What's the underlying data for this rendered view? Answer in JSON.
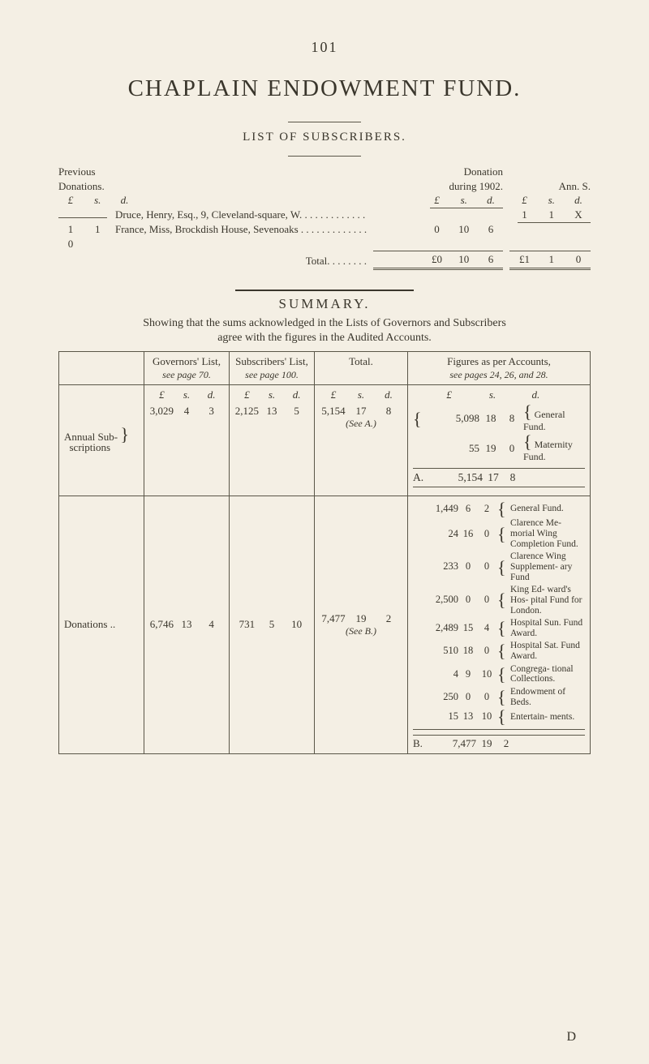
{
  "page_number": "101",
  "title": "CHAPLAIN ENDOWMENT FUND.",
  "list_header": "LIST OF SUBSCRIBERS.",
  "previous_block": {
    "line1": "Previous",
    "line2": "Donations.",
    "lsd_header": [
      "£",
      "s.",
      "d."
    ]
  },
  "donation_block": {
    "line1": "Donation",
    "line2": "during 1902.",
    "ann_s": "Ann. S.",
    "lsd_header_left": [
      "£",
      "s.",
      "d."
    ],
    "lsd_header_right": [
      "£",
      "s.",
      "d."
    ]
  },
  "entries": [
    {
      "prev_lsd": [
        "",
        "",
        ""
      ],
      "name": "Druce, Henry, Esq., 9, Cleveland-square, W. . . . . . . . . . . . . . . . . . .",
      "don_lsd": [
        "",
        "",
        ""
      ],
      "ann_lsd": [
        "1",
        "1",
        "X"
      ]
    },
    {
      "prev_lsd": [
        "1",
        "1",
        "0"
      ],
      "name": "France, Miss, Brockdish House, Sevenoaks . . . . . . . . . . . . . . . . . .",
      "don_lsd": [
        "0",
        "10",
        "6"
      ],
      "ann_lsd": [
        "",
        "",
        ""
      ]
    }
  ],
  "total_row": {
    "label": "Total. . . . . . . .",
    "don_lsd": [
      "£0",
      "10",
      "6"
    ],
    "ann_lsd": [
      "£1",
      "1",
      "0"
    ]
  },
  "summary_heading": "SUMMARY.",
  "summary_text1": "Showing that the sums acknowledged in the Lists of Governors and Subscribers",
  "summary_text2": "agree with the figures in the Audited Accounts.",
  "table": {
    "col_headers": {
      "gov": "Governors' List,",
      "gov_see": "see page 70.",
      "sub": "Subscribers' List,",
      "sub_see": "see page 100.",
      "tot": "Total.",
      "fig": "Figures as per Accounts,",
      "fig_see": "see pages 24, 26, and 28."
    },
    "lsd_header": [
      "£",
      "s.",
      "d."
    ],
    "annual_row": {
      "stub1": "Annual Sub-",
      "stub2": "scriptions",
      "gov": [
        "3,029",
        "4",
        "3"
      ],
      "sub": [
        "2,125",
        "13",
        "5"
      ],
      "tot": [
        "5,154",
        "17",
        "8"
      ],
      "seeA": "(See A.)",
      "figures": [
        {
          "amount": [
            "5,098",
            "18",
            "8"
          ],
          "label": "General Fund."
        },
        {
          "amount": [
            "55",
            "19",
            "0"
          ],
          "label": "Maternity Fund."
        }
      ],
      "fig_total_label": "A.",
      "fig_total": [
        "5,154",
        "17",
        "8"
      ]
    },
    "donations_row": {
      "stub": "Donations ..",
      "gov": [
        "6,746",
        "13",
        "4"
      ],
      "sub": [
        "731",
        "5",
        "10"
      ],
      "tot": [
        "7,477",
        "19",
        "2"
      ],
      "seeB": "(See B.)",
      "figures": [
        {
          "amount": [
            "1,449",
            "6",
            "2"
          ],
          "label": "General Fund."
        },
        {
          "amount": [
            "24",
            "16",
            "0"
          ],
          "label": "Clarence Me- morial Wing Completion Fund."
        },
        {
          "amount": [
            "233",
            "0",
            "0"
          ],
          "label": "Clarence Wing Supplement- ary Fund"
        },
        {
          "amount": [
            "2,500",
            "0",
            "0"
          ],
          "label": "King Ed- ward's Hos- pital Fund for London."
        },
        {
          "amount": [
            "2,489",
            "15",
            "4"
          ],
          "label": "Hospital Sun. Fund Award."
        },
        {
          "amount": [
            "510",
            "18",
            "0"
          ],
          "label": "Hospital Sat. Fund Award."
        },
        {
          "amount": [
            "4",
            "9",
            "10"
          ],
          "label": "Congrega- tional Collections."
        },
        {
          "amount": [
            "250",
            "0",
            "0"
          ],
          "label": "Endowment of Beds."
        },
        {
          "amount": [
            "15",
            "13",
            "10"
          ],
          "label": "Entertain- ments."
        }
      ],
      "fig_total_label": "B.",
      "fig_total": [
        "7,477",
        "19",
        "2"
      ]
    }
  },
  "sig_letter": "D",
  "colors": {
    "background": "#f4efe4",
    "text": "#3a362c",
    "rule": "#5a5648"
  }
}
